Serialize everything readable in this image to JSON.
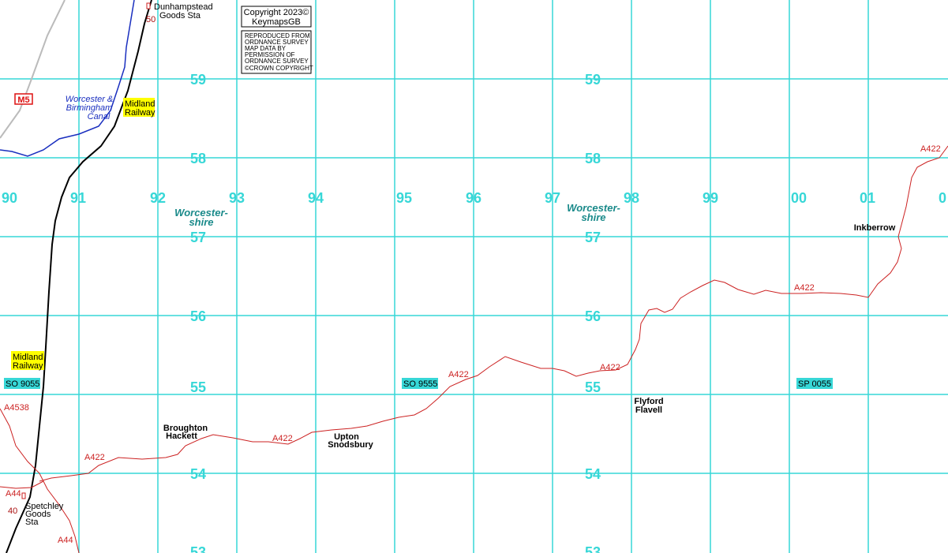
{
  "grid": {
    "easting_labels": [
      "90",
      "91",
      "92",
      "93",
      "94",
      "95",
      "96",
      "97",
      "98",
      "99",
      "00",
      "01",
      "0"
    ],
    "northing_labels_left": [
      "59",
      "58",
      "57",
      "56",
      "55",
      "54",
      "53"
    ],
    "northing_labels_right": [
      "59",
      "58",
      "57",
      "56",
      "55",
      "54",
      "53"
    ]
  },
  "copyright": {
    "line1": "Copyright 2023©",
    "line2": "KeymapsGB",
    "os_lines": [
      "REPRODUCED FROM",
      "ORDNANCE SURVEY",
      "MAP DATA BY",
      "PERMISSION OF",
      "ORDNANCE SURVEY"
    ],
    "crown": "©CROWN COPYRIGHT"
  },
  "county": {
    "left": {
      "line1": "Worcester-",
      "line2": "shire"
    },
    "right": {
      "line1": "Worcester-",
      "line2": "shire"
    }
  },
  "places": {
    "broughton": {
      "line1": "Broughton",
      "line2": "Hackett"
    },
    "upton": {
      "line1": "Upton",
      "line2": "Snodsbury"
    },
    "flyford": {
      "line1": "Flyford",
      "line2": "Flavell"
    },
    "inkberrow": "Inkberrow"
  },
  "stations": {
    "dunhampstead": {
      "line1": "Dunhampstead",
      "line2": "Goods Sta"
    },
    "spetchley": {
      "line1": "Spetchley",
      "line2": "Goods",
      "line3": "Sta"
    }
  },
  "canal": {
    "line1": "Worcester &",
    "line2": "Birmingham",
    "line3": "Canal"
  },
  "railway_labels": {
    "top": {
      "line1": "Midland",
      "line2": "Railway"
    },
    "bottom": {
      "line1": "Midland",
      "line2": "Railway"
    }
  },
  "motorway": "M5",
  "mileposts": {
    "top": "50",
    "bottom": "40"
  },
  "roads": {
    "a422": "A422",
    "a4538": "A4538",
    "a44": "A44"
  },
  "grid_refs": {
    "so9055": "SO 9055",
    "so9555": "SO 9555",
    "sp0055": "SP 0055"
  },
  "colors": {
    "grid": "#37d7d7",
    "road": "#cc2222",
    "railway": "#000000",
    "canal": "#1a2fbf",
    "motorway": "#bbbbbb",
    "rail_label_bg": "#ffff00",
    "ref_bg": "#37d7d7"
  }
}
